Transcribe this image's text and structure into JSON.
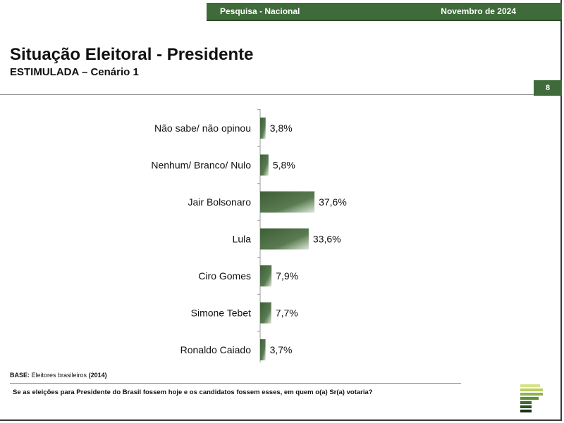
{
  "header": {
    "left": "Pesquisa - Nacional",
    "right": "Novembro de 2024"
  },
  "title": "Situação Eleitoral - Presidente",
  "subtitle": "ESTIMULADA – Cenário 1",
  "page_number": "8",
  "base": {
    "label": "BASE:",
    "text": "Eleitores brasileiros",
    "count": "(2014)"
  },
  "question": "Se as eleições para Presidente do Brasil fossem hoje e os candidatos fossem esses, em quem o(a) Sr(a) votaria?",
  "colors": {
    "accent": "#3f6b3a",
    "bar_dark": "#3d5e36",
    "bar_light": "#dfe8d9"
  },
  "chart_data": {
    "type": "bar",
    "orientation": "horizontal",
    "categories": [
      "Não sabe/ não opinou",
      "Nenhum/ Branco/ Nulo",
      "Jair Bolsonaro",
      "Lula",
      "Ciro Gomes",
      "Simone Tebet",
      "Ronaldo Caiado"
    ],
    "values": [
      3.8,
      5.8,
      37.6,
      33.6,
      7.9,
      7.7,
      3.7
    ],
    "labels": [
      "3,8%",
      "5,8%",
      "37,6%",
      "33,6%",
      "7,9%",
      "7,7%",
      "3,7%"
    ],
    "title": "",
    "xlabel": "",
    "ylabel": "",
    "grid": false,
    "legend": false
  }
}
